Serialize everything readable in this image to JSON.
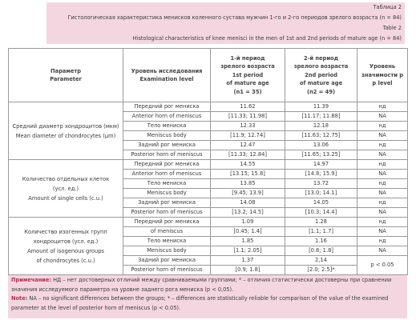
{
  "header": {
    "lines": [
      "Таблица 2",
      "Гистологическая характеристика менисков коленного сустава мужчин 1-го и 2-го периодов зрелого возраста (n = 84)",
      "Table 2",
      "Histological characteristics of knee menisci in the men of 1st and 2nd periods of mature age (n = 84)"
    ]
  },
  "table": {
    "columns": [
      [
        "Параметр",
        "Parameter"
      ],
      [
        "Уровень исследования",
        "Examination level"
      ],
      [
        "1-й период",
        "зрелого возраста",
        "1st period",
        "of mature age",
        "(n1 = 35)"
      ],
      [
        "2-й период",
        "зрелого возраста",
        "2nd period",
        "of mature age",
        "(n2 = 49)"
      ],
      [
        "Уровень",
        "значимости р",
        "p level"
      ]
    ],
    "sections": [
      {
        "parameter": [
          "Средний диаметр хондроцитов (мкм)",
          "Mean diameter of chondrocytes (μm)"
        ],
        "rows": [
          [
            "Передний рог мениска",
            "11.62",
            "11.39",
            "нд"
          ],
          [
            "Anterior horn of meniscus",
            "[11.33; 11.98]",
            "[11.17; 11.88]",
            "NA"
          ],
          [
            "Тело мениска",
            "12.33",
            "12.18",
            "нд"
          ],
          [
            "Meniscus body",
            "[11.9; 12.74]",
            "[11.63; 12.75]",
            "NA"
          ],
          [
            "Задний рог мениска",
            "12.47",
            "13.06",
            "нд"
          ],
          [
            "Posterior horn of meniscus",
            "[11.33; 12.84]",
            "[11.65; 13.25]",
            "NA"
          ]
        ]
      },
      {
        "parameter": [
          "Количество отдельных клеток",
          "(усл. ед.)",
          "Amount of single cells (c.u.)"
        ],
        "rows": [
          [
            "Передний рог мениска",
            "14.55",
            "14.97",
            "нд"
          ],
          [
            "Anterior horn of meniscus",
            "[13.15; 15.8]",
            "[14.8; 15.9]",
            "NA"
          ],
          [
            "Тело мениска",
            "13.85",
            "13.72",
            "нд"
          ],
          [
            "Meniscus body",
            "[9.45; 13.9]",
            "[13.0; 14.1]",
            "NA"
          ],
          [
            "Задний рог мениска",
            "14.08",
            "14.05",
            "нд"
          ],
          [
            "Posterior horn of meniscus",
            "[13.2; 14.5]",
            "[10.3; 14.4]",
            "NA"
          ]
        ]
      },
      {
        "parameter": [
          "Количество изогенных групп",
          "хондроцитов (усл. ед.)",
          "Amount of isogenous groups",
          "of chondrocytes (c.u.)"
        ],
        "rows": [
          [
            "Передний рог мениска",
            "1.09",
            "1.28",
            "нд"
          ],
          [
            "of meniscus",
            "[0.45; 1.4]",
            "[1.1; 1.7]",
            "NA"
          ],
          [
            "Тело мениска",
            "1.85",
            "1.16",
            "нд"
          ],
          [
            "Meniscus body",
            "[1.1; 2.05]",
            "[0.8; 1.8]",
            "NA"
          ],
          [
            "Задний рог мениска",
            "1.37",
            "2,14",
            "p < 0.05"
          ],
          [
            "Posterior horn of meniscus",
            "[0.9; 1.8]",
            "[2.0; 2.5]*"
          ]
        ]
      }
    ]
  },
  "notes": [
    {
      "label": "Примечание:",
      "text": "НД – нет достоверных отличий между сравниваемыми группами; * – отличия статистически достоверны при сравнении значения исследуемого параметра на уровне заднего рога мениска (p < 0,05)."
    },
    {
      "label": "Note:",
      "text": "NA – no significant differences between the groups; * – differences are statistically reliable for comparison of the value of the examined parameter at the level of posterior horn of meniscus (p < 0.05)."
    }
  ]
}
